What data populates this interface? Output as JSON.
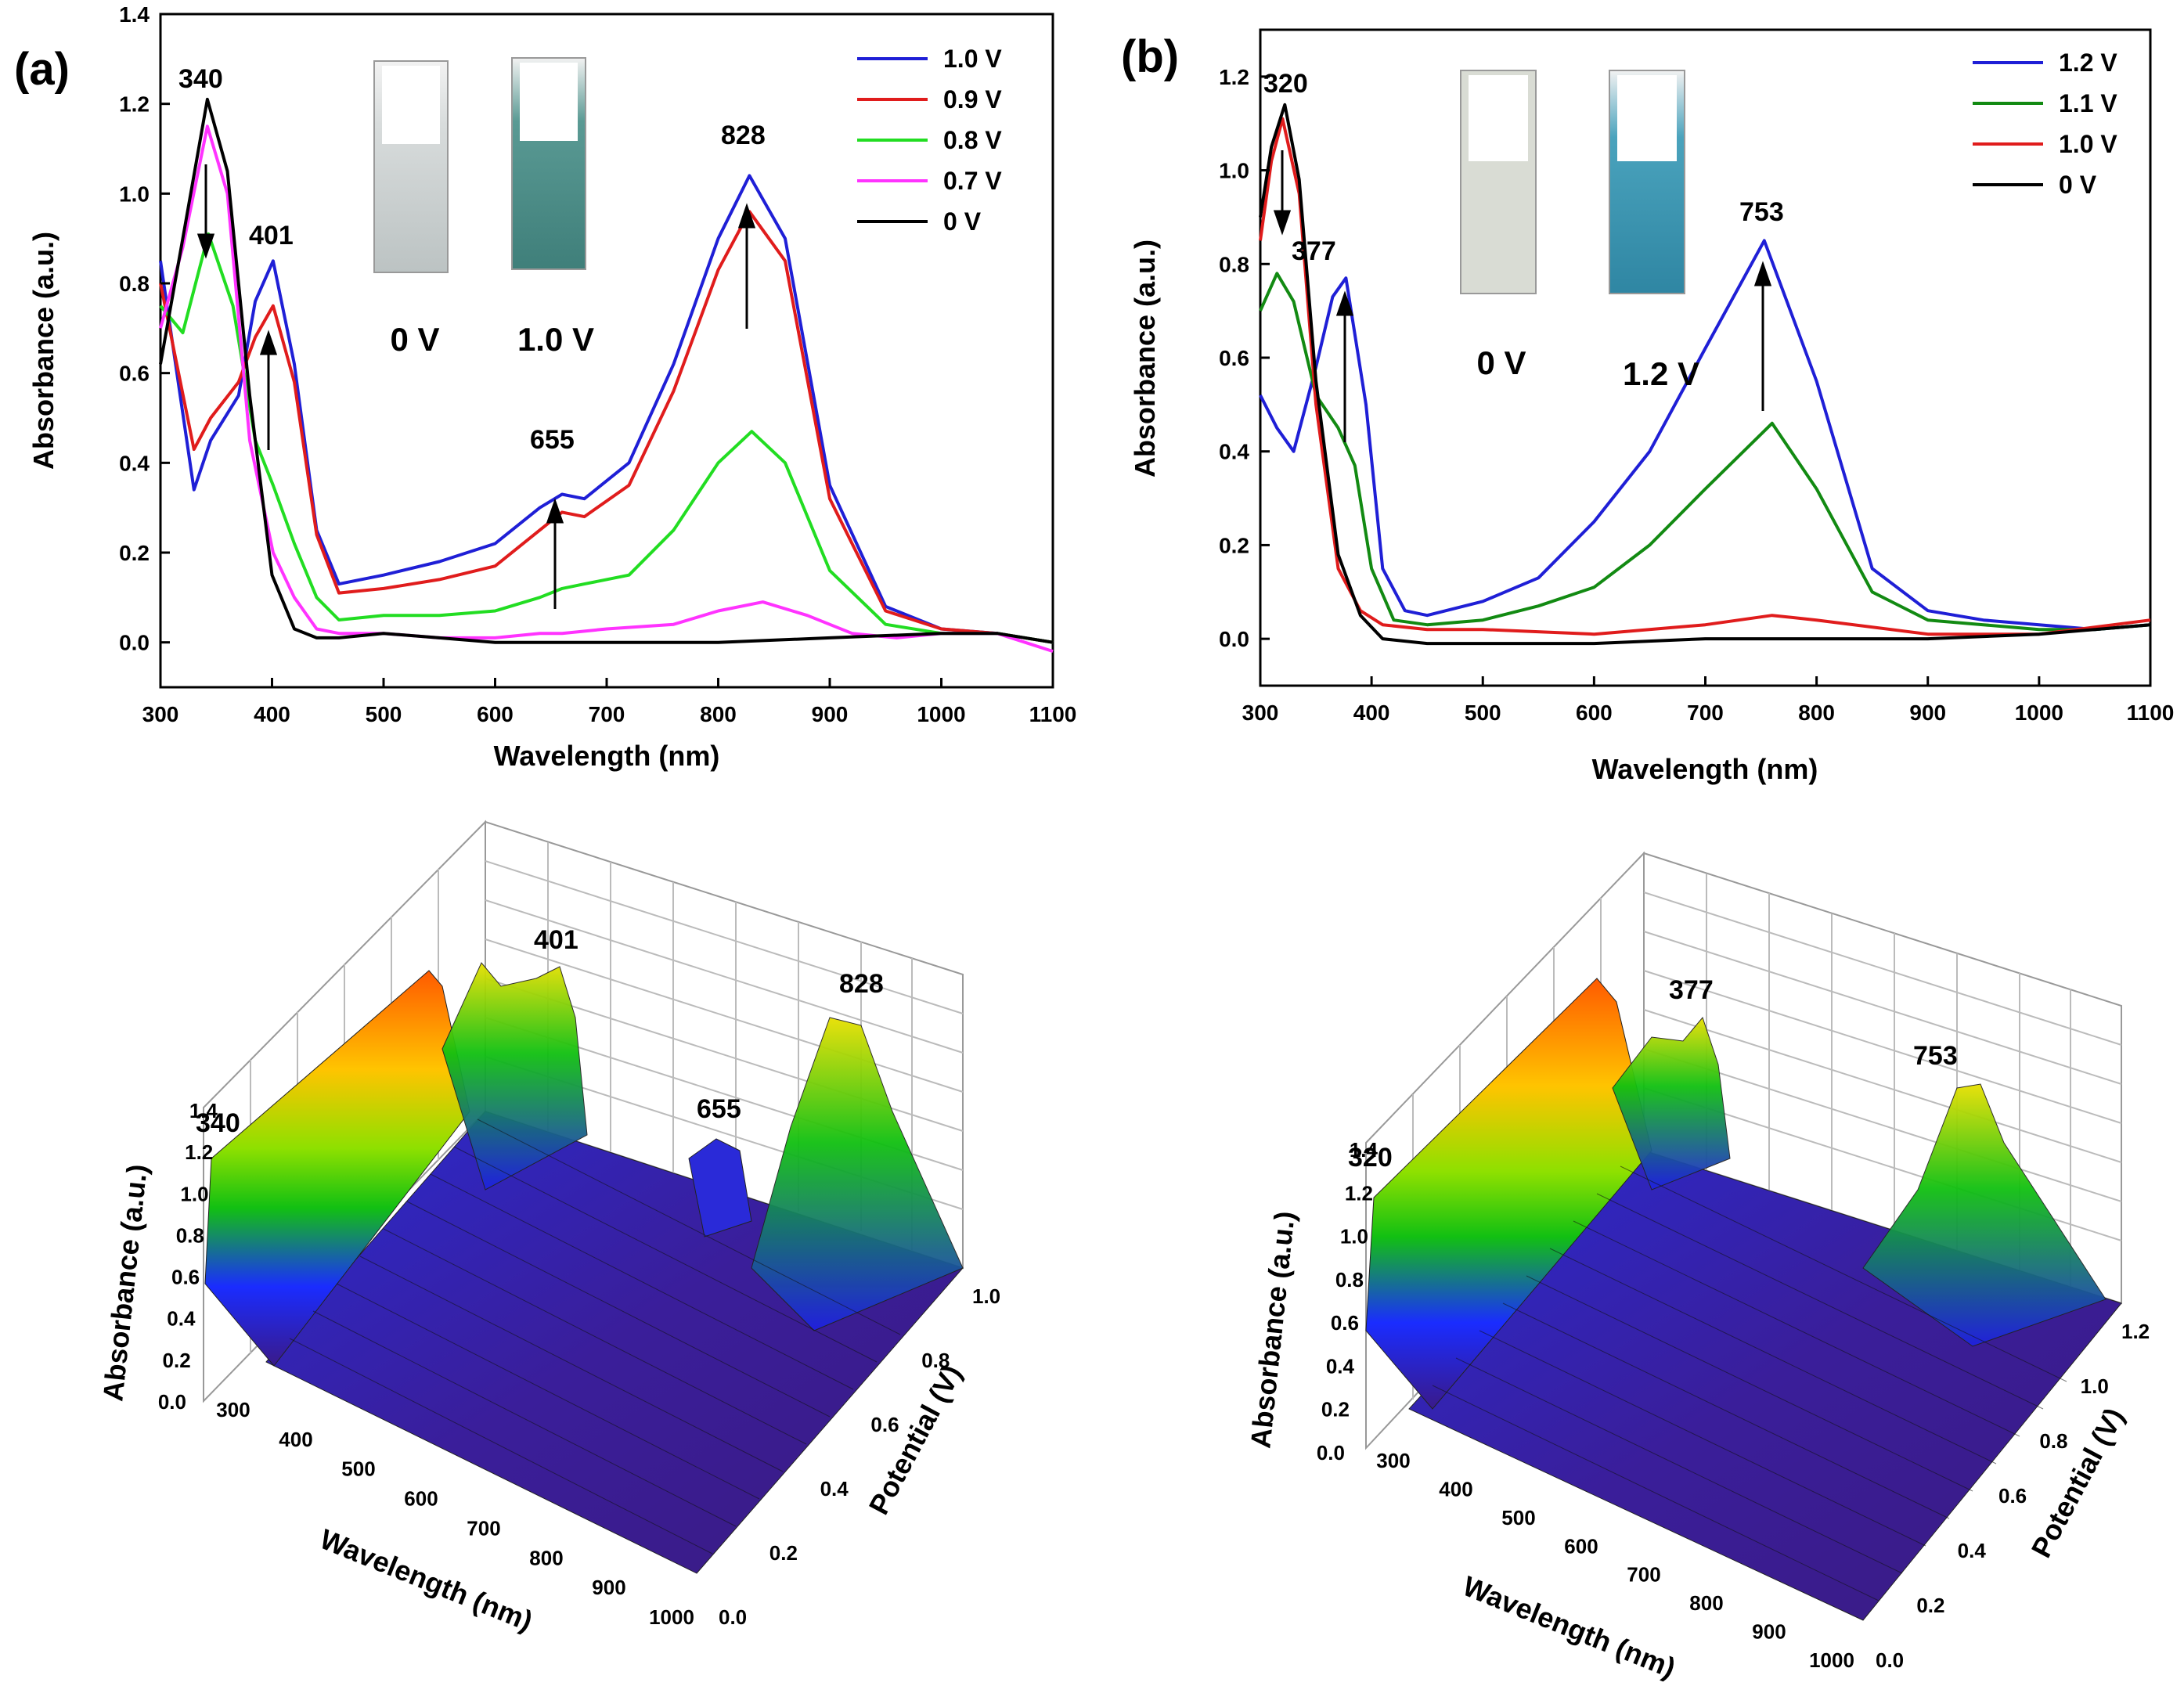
{
  "chart_data": [
    {
      "type": "line",
      "panel_label": "(a)",
      "title": "",
      "xlabel": "Wavelength (nm)",
      "ylabel": "Absorbance (a.u.)",
      "xlim": [
        300,
        1100
      ],
      "ylim": [
        -0.1,
        1.4
      ],
      "xticks": [
        300,
        400,
        500,
        600,
        700,
        800,
        900,
        1000,
        1100
      ],
      "yticks": [
        0.0,
        0.2,
        0.4,
        0.6,
        0.8,
        1.0,
        1.2,
        1.4
      ],
      "legend_position": "top-right",
      "series": [
        {
          "name": "1.0 V",
          "color": "#1f1fd6",
          "x": [
            300,
            330,
            345,
            370,
            385,
            401,
            420,
            440,
            460,
            500,
            550,
            600,
            640,
            660,
            680,
            720,
            760,
            800,
            828,
            860,
            900,
            950,
            1000,
            1050,
            1100
          ],
          "values": [
            0.85,
            0.34,
            0.45,
            0.55,
            0.76,
            0.85,
            0.62,
            0.25,
            0.13,
            0.15,
            0.18,
            0.22,
            0.3,
            0.33,
            0.32,
            0.4,
            0.62,
            0.9,
            1.04,
            0.9,
            0.35,
            0.08,
            0.03,
            0.02,
            0.0
          ]
        },
        {
          "name": "0.9 V",
          "color": "#e01c1c",
          "x": [
            300,
            330,
            345,
            370,
            385,
            401,
            420,
            440,
            460,
            500,
            550,
            600,
            640,
            660,
            680,
            720,
            760,
            800,
            828,
            860,
            900,
            950,
            1000,
            1050,
            1100
          ],
          "values": [
            0.8,
            0.43,
            0.5,
            0.58,
            0.68,
            0.75,
            0.58,
            0.24,
            0.11,
            0.12,
            0.14,
            0.17,
            0.25,
            0.29,
            0.28,
            0.35,
            0.56,
            0.83,
            0.96,
            0.85,
            0.32,
            0.07,
            0.03,
            0.02,
            0.0
          ]
        },
        {
          "name": "0.8 V",
          "color": "#22dd22",
          "x": [
            300,
            320,
            343,
            365,
            385,
            401,
            420,
            440,
            460,
            500,
            550,
            600,
            640,
            660,
            680,
            720,
            760,
            800,
            830,
            860,
            900,
            950,
            1000,
            1050,
            1100
          ],
          "values": [
            0.75,
            0.69,
            0.91,
            0.75,
            0.45,
            0.35,
            0.22,
            0.1,
            0.05,
            0.06,
            0.06,
            0.07,
            0.1,
            0.12,
            0.13,
            0.15,
            0.25,
            0.4,
            0.47,
            0.4,
            0.16,
            0.04,
            0.02,
            0.02,
            0.0
          ]
        },
        {
          "name": "0.7 V",
          "color": "#ff33ff",
          "x": [
            300,
            320,
            342,
            360,
            380,
            401,
            420,
            440,
            460,
            500,
            550,
            600,
            640,
            660,
            700,
            760,
            800,
            840,
            880,
            920,
            960,
            1000,
            1050,
            1100
          ],
          "values": [
            0.7,
            0.88,
            1.15,
            1.0,
            0.45,
            0.2,
            0.1,
            0.03,
            0.02,
            0.02,
            0.01,
            0.01,
            0.02,
            0.02,
            0.03,
            0.04,
            0.07,
            0.09,
            0.06,
            0.02,
            0.01,
            0.02,
            0.02,
            -0.02
          ]
        },
        {
          "name": "0 V",
          "color": "#000000",
          "x": [
            300,
            320,
            342,
            360,
            380,
            400,
            420,
            440,
            460,
            500,
            550,
            600,
            650,
            700,
            800,
            900,
            1000,
            1050,
            1100
          ],
          "values": [
            0.62,
            0.9,
            1.21,
            1.05,
            0.55,
            0.15,
            0.03,
            0.01,
            0.01,
            0.02,
            0.01,
            0.0,
            0.0,
            0.0,
            0.0,
            0.01,
            0.02,
            0.02,
            0.0
          ]
        }
      ],
      "annotations": [
        "340",
        "401",
        "655",
        "828"
      ],
      "inset_labels": [
        "0 V",
        "1.0 V"
      ]
    },
    {
      "type": "line",
      "panel_label": "(b)",
      "title": "",
      "xlabel": "Wavelength (nm)",
      "ylabel": "Absorbance (a.u.)",
      "xlim": [
        300,
        1100
      ],
      "ylim": [
        -0.1,
        1.3
      ],
      "xticks": [
        300,
        400,
        500,
        600,
        700,
        800,
        900,
        1000,
        1100
      ],
      "yticks": [
        0.0,
        0.2,
        0.4,
        0.6,
        0.8,
        1.0,
        1.2
      ],
      "legend_position": "top-right",
      "series": [
        {
          "name": "1.2 V",
          "color": "#1f1fd6",
          "x": [
            300,
            315,
            330,
            350,
            365,
            377,
            395,
            410,
            430,
            450,
            500,
            550,
            600,
            650,
            700,
            753,
            800,
            850,
            900,
            950,
            1000,
            1050,
            1100
          ],
          "values": [
            0.52,
            0.45,
            0.4,
            0.58,
            0.73,
            0.77,
            0.5,
            0.15,
            0.06,
            0.05,
            0.08,
            0.13,
            0.25,
            0.4,
            0.62,
            0.85,
            0.55,
            0.15,
            0.06,
            0.04,
            0.03,
            0.02,
            0.03
          ]
        },
        {
          "name": "1.1 V",
          "color": "#128a12",
          "x": [
            300,
            315,
            330,
            350,
            370,
            385,
            400,
            420,
            450,
            500,
            550,
            600,
            650,
            700,
            760,
            800,
            850,
            900,
            950,
            1000,
            1050,
            1100
          ],
          "values": [
            0.7,
            0.78,
            0.72,
            0.52,
            0.45,
            0.37,
            0.15,
            0.04,
            0.03,
            0.04,
            0.07,
            0.11,
            0.2,
            0.32,
            0.46,
            0.32,
            0.1,
            0.04,
            0.03,
            0.02,
            0.02,
            0.03
          ]
        },
        {
          "name": "1.0 V",
          "color": "#e01c1c",
          "x": [
            300,
            310,
            320,
            335,
            350,
            370,
            390,
            410,
            450,
            500,
            600,
            700,
            760,
            800,
            900,
            1000,
            1100
          ],
          "values": [
            0.85,
            1.02,
            1.11,
            0.95,
            0.5,
            0.15,
            0.06,
            0.03,
            0.02,
            0.02,
            0.01,
            0.03,
            0.05,
            0.04,
            0.01,
            0.01,
            0.04
          ]
        },
        {
          "name": "0 V",
          "color": "#000000",
          "x": [
            300,
            310,
            322,
            335,
            350,
            370,
            390,
            410,
            450,
            500,
            600,
            700,
            800,
            900,
            1000,
            1100
          ],
          "values": [
            0.9,
            1.05,
            1.14,
            0.98,
            0.55,
            0.18,
            0.05,
            0.0,
            -0.01,
            -0.01,
            -0.01,
            0.0,
            0.0,
            0.0,
            0.01,
            0.03
          ]
        }
      ],
      "annotations": [
        "320",
        "377",
        "753"
      ],
      "inset_labels": [
        "0 V",
        "1.2 V"
      ]
    },
    {
      "type": "surface3d",
      "xlabel": "Wavelength (nm)",
      "ylabel": "Potential (V)",
      "zlabel": "Absorbance (a.u.)",
      "xticks": [
        300,
        400,
        500,
        600,
        700,
        800,
        900,
        1000
      ],
      "yticks": [
        0.0,
        0.2,
        0.4,
        0.6,
        0.8,
        1.0
      ],
      "zticks": [
        0.0,
        0.2,
        0.4,
        0.6,
        0.8,
        1.0,
        1.2,
        1.4
      ],
      "annotations": [
        "340",
        "401",
        "655",
        "828"
      ]
    },
    {
      "type": "surface3d",
      "xlabel": "Wavelength (nm)",
      "ylabel": "Potential (V)",
      "zlabel": "Absorbance (a.u.)",
      "xticks": [
        300,
        400,
        500,
        600,
        700,
        800,
        900,
        1000
      ],
      "yticks": [
        0.0,
        0.2,
        0.4,
        0.6,
        0.8,
        1.0,
        1.2
      ],
      "zticks": [
        0.0,
        0.2,
        0.4,
        0.6,
        0.8,
        1.0,
        1.2,
        1.4
      ],
      "annotations": [
        "320",
        "377",
        "753"
      ]
    }
  ]
}
